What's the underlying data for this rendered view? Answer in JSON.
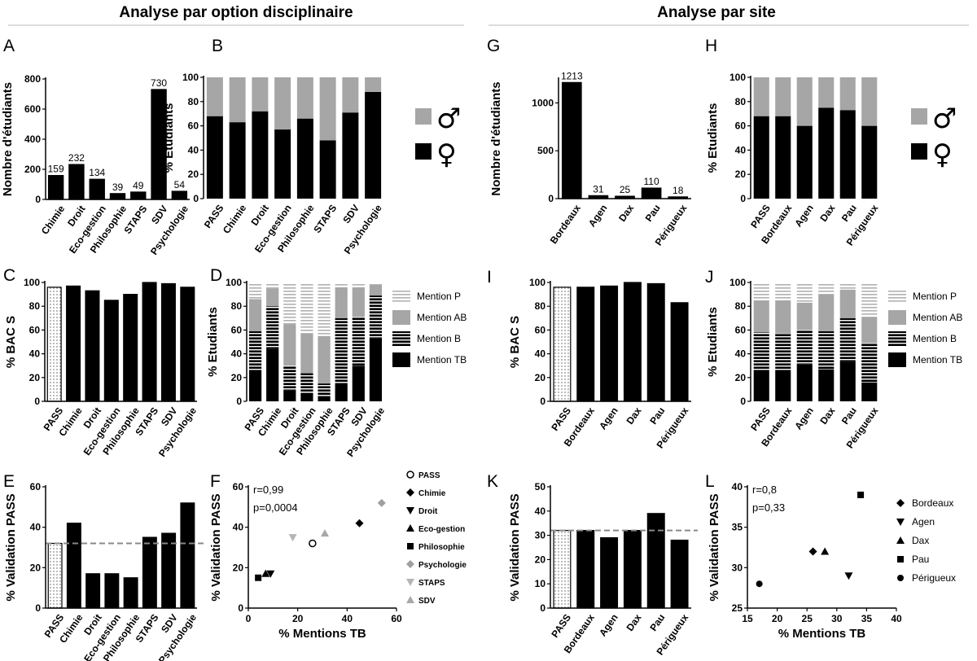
{
  "headers": {
    "left": "Analyse par option disciplinaire",
    "right": "Analyse par site"
  },
  "legends": {
    "gender": {
      "male": "♂",
      "female": "♀"
    },
    "mentions": [
      "Mention P",
      "Mention AB",
      "Mention B",
      "Mention TB"
    ]
  },
  "colors": {
    "black": "#000000",
    "grey": "#a6a6a6",
    "light": "#c8c8c8",
    "dashed": "#888888"
  },
  "chart_data": [
    {
      "letter": "A",
      "type": "bar",
      "ylabel": "Nombre d'étudiants",
      "ylim": [
        0,
        800
      ],
      "yticks": [
        0,
        200,
        400,
        600,
        800
      ],
      "categories": [
        "Chimie",
        "Droit",
        "Eco-gestion",
        "Philosophie",
        "STAPS",
        "SDV",
        "Psychologie"
      ],
      "values": [
        159,
        232,
        134,
        39,
        49,
        730,
        54
      ],
      "data_labels": [
        "159",
        "232",
        "134",
        "39",
        "49",
        "730",
        "54"
      ]
    },
    {
      "letter": "B",
      "type": "bar",
      "stacked": true,
      "ylabel": "% Etudiants",
      "ylim": [
        0,
        100
      ],
      "yticks": [
        0,
        20,
        40,
        60,
        80,
        100
      ],
      "categories": [
        "PASS",
        "Chimie",
        "Droit",
        "Eco-gestion",
        "Philosophie",
        "STAPS",
        "SDV",
        "Psychologie"
      ],
      "series": [
        {
          "name": "♀",
          "values": [
            68,
            63,
            72,
            57,
            66,
            48,
            71,
            88
          ]
        },
        {
          "name": "♂",
          "values": [
            32,
            37,
            28,
            43,
            34,
            52,
            29,
            12
          ]
        }
      ]
    },
    {
      "letter": "C",
      "type": "bar",
      "ylabel": "% BAC S",
      "ylim": [
        0,
        100
      ],
      "yticks": [
        0,
        20,
        40,
        60,
        80,
        100
      ],
      "categories": [
        "PASS",
        "Chimie",
        "Droit",
        "Eco-gestion",
        "Philosophie",
        "STAPS",
        "SDV",
        "Psychologie"
      ],
      "values": [
        96,
        97,
        93,
        85,
        90,
        100,
        99,
        96
      ]
    },
    {
      "letter": "D",
      "type": "bar",
      "stacked": true,
      "ylabel": "% Etudiants",
      "ylim": [
        0,
        100
      ],
      "yticks": [
        0,
        20,
        40,
        60,
        80,
        100
      ],
      "categories": [
        "PASS",
        "Chimie",
        "Droit",
        "Eco-gestion",
        "Philosophie",
        "STAPS",
        "SDV",
        "Psychologie"
      ],
      "series": [
        {
          "name": "Mention TB",
          "values": [
            25,
            44,
            9,
            7,
            4,
            15,
            30,
            53
          ]
        },
        {
          "name": "Mention B",
          "values": [
            34,
            36,
            21,
            17,
            11,
            55,
            41,
            36
          ]
        },
        {
          "name": "Mention AB",
          "values": [
            27,
            15,
            35,
            33,
            40,
            26,
            25,
            9
          ]
        },
        {
          "name": "Mention P",
          "values": [
            14,
            5,
            35,
            43,
            45,
            4,
            4,
            2
          ]
        }
      ]
    },
    {
      "letter": "E",
      "type": "bar",
      "ylabel": "% Validation PASS",
      "ylim": [
        0,
        60
      ],
      "yticks": [
        0,
        20,
        40,
        60
      ],
      "categories": [
        "PASS",
        "Chimie",
        "Droit",
        "Eco-gestion",
        "Philosophie",
        "STAPS",
        "SDV",
        "Psychologie"
      ],
      "values": [
        32,
        42,
        17,
        17,
        15,
        35,
        37,
        52
      ],
      "reference_line": 32
    },
    {
      "letter": "F",
      "type": "scatter",
      "xlabel": "% Mentions TB",
      "ylabel": "% Validation PASS",
      "xlim": [
        0,
        60
      ],
      "ylim": [
        0,
        60
      ],
      "xticks": [
        0,
        20,
        40,
        60
      ],
      "yticks": [
        0,
        20,
        40,
        60
      ],
      "annotations": [
        "r=0,99",
        "p=0,0004"
      ],
      "points": [
        {
          "name": "PASS",
          "x": 26,
          "y": 32
        },
        {
          "name": "Chimie",
          "x": 45,
          "y": 42
        },
        {
          "name": "Droit",
          "x": 9,
          "y": 17
        },
        {
          "name": "Eco-gestion",
          "x": 7,
          "y": 17
        },
        {
          "name": "Philosophie",
          "x": 4,
          "y": 15
        },
        {
          "name": "Psychologie",
          "x": 54,
          "y": 52
        },
        {
          "name": "STAPS",
          "x": 18,
          "y": 35
        },
        {
          "name": "SDV",
          "x": 31,
          "y": 37
        }
      ]
    },
    {
      "letter": "G",
      "type": "bar",
      "ylabel": "Nombre d'étudiants",
      "ylim": [
        0,
        1250
      ],
      "yticks": [
        0,
        500,
        1000
      ],
      "categories": [
        "Bordeaux",
        "Agen",
        "Dax",
        "Pau",
        "Périgueux"
      ],
      "values": [
        1213,
        31,
        25,
        110,
        18
      ],
      "data_labels": [
        "1213",
        "31",
        "25",
        "110",
        "18"
      ]
    },
    {
      "letter": "H",
      "type": "bar",
      "stacked": true,
      "ylabel": "% Etudiants",
      "ylim": [
        0,
        100
      ],
      "yticks": [
        0,
        20,
        40,
        60,
        80,
        100
      ],
      "categories": [
        "PASS",
        "Bordeaux",
        "Agen",
        "Dax",
        "Pau",
        "Périgueux"
      ],
      "series": [
        {
          "name": "♀",
          "values": [
            68,
            68,
            60,
            75,
            73,
            60
          ]
        },
        {
          "name": "♂",
          "values": [
            32,
            32,
            40,
            25,
            27,
            40
          ]
        }
      ]
    },
    {
      "letter": "I",
      "type": "bar",
      "ylabel": "% BAC S",
      "ylim": [
        0,
        100
      ],
      "yticks": [
        0,
        20,
        40,
        60,
        80,
        100
      ],
      "categories": [
        "PASS",
        "Bordeaux",
        "Agen",
        "Dax",
        "Pau",
        "Périgueux"
      ],
      "values": [
        96,
        96,
        97,
        100,
        99,
        83
      ]
    },
    {
      "letter": "J",
      "type": "bar",
      "stacked": true,
      "ylabel": "% Etudiants",
      "ylim": [
        0,
        100
      ],
      "yticks": [
        0,
        20,
        40,
        60,
        80,
        100
      ],
      "categories": [
        "PASS",
        "Bordeaux",
        "Agen",
        "Dax",
        "Pau",
        "Périgueux"
      ],
      "series": [
        {
          "name": "Mention TB",
          "values": [
            25,
            25,
            31,
            27,
            33,
            16
          ]
        },
        {
          "name": "Mention B",
          "values": [
            33,
            32,
            29,
            32,
            37,
            33
          ]
        },
        {
          "name": "Mention AB",
          "values": [
            27,
            28,
            23,
            31,
            24,
            22
          ]
        },
        {
          "name": "Mention P",
          "values": [
            15,
            15,
            17,
            10,
            6,
            29
          ]
        }
      ]
    },
    {
      "letter": "K",
      "type": "bar",
      "ylabel": "% Validation PASS",
      "ylim": [
        0,
        50
      ],
      "yticks": [
        0,
        10,
        20,
        30,
        40,
        50
      ],
      "categories": [
        "PASS",
        "Bordeaux",
        "Agen",
        "Dax",
        "Pau",
        "Périgueux"
      ],
      "values": [
        32,
        32,
        29,
        32,
        39,
        28
      ],
      "reference_line": 32
    },
    {
      "letter": "L",
      "type": "scatter",
      "xlabel": "% Mentions TB",
      "ylabel": "% Validation PASS",
      "xlim": [
        15,
        40
      ],
      "ylim": [
        25,
        40
      ],
      "xticks": [
        15,
        20,
        25,
        30,
        35,
        40
      ],
      "yticks": [
        25,
        30,
        35,
        40
      ],
      "annotations": [
        "r=0,8",
        "p=0,33"
      ],
      "points": [
        {
          "name": "Bordeaux",
          "x": 26,
          "y": 32
        },
        {
          "name": "Agen",
          "x": 32,
          "y": 29
        },
        {
          "name": "Dax",
          "x": 28,
          "y": 32
        },
        {
          "name": "Pau",
          "x": 34,
          "y": 39
        },
        {
          "name": "Périgueux",
          "x": 17,
          "y": 28
        }
      ]
    }
  ]
}
